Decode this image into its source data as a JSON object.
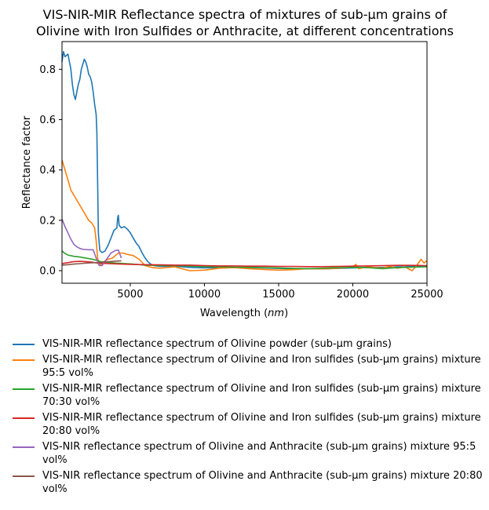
{
  "chart_data": {
    "type": "line",
    "title_lines": [
      "VIS-NIR-MIR Reflectance spectra of mixtures of sub-µm grains of",
      "Olivine with Iron Sulfides or Anthracite, at different concentrations"
    ],
    "xlabel_prefix": "Wavelength (",
    "xlabel_unit": "nm",
    "xlabel_suffix": ")",
    "ylabel": "Reflectance factor",
    "xlim": [
      400,
      25000
    ],
    "ylim": [
      -0.05,
      0.91
    ],
    "xticks": [
      5000,
      10000,
      15000,
      20000,
      25000
    ],
    "yticks": [
      0.0,
      0.2,
      0.4,
      0.6,
      0.8
    ],
    "legend_position": "below",
    "series": [
      {
        "name": "VIS-NIR-MIR reflectance spectrum of Olivine powder (sub-µm grains)",
        "color": "#1f77b4",
        "points": [
          [
            400,
            0.83
          ],
          [
            500,
            0.87
          ],
          [
            600,
            0.85
          ],
          [
            800,
            0.86
          ],
          [
            1000,
            0.8
          ],
          [
            1100,
            0.74
          ],
          [
            1200,
            0.7
          ],
          [
            1300,
            0.68
          ],
          [
            1400,
            0.71
          ],
          [
            1500,
            0.74
          ],
          [
            1600,
            0.76
          ],
          [
            1700,
            0.8
          ],
          [
            1800,
            0.82
          ],
          [
            1900,
            0.84
          ],
          [
            2000,
            0.83
          ],
          [
            2100,
            0.81
          ],
          [
            2200,
            0.78
          ],
          [
            2300,
            0.77
          ],
          [
            2400,
            0.75
          ],
          [
            2500,
            0.71
          ],
          [
            2600,
            0.66
          ],
          [
            2700,
            0.62
          ],
          [
            2750,
            0.55
          ],
          [
            2800,
            0.35
          ],
          [
            2850,
            0.15
          ],
          [
            2950,
            0.08
          ],
          [
            3100,
            0.072
          ],
          [
            3300,
            0.078
          ],
          [
            3500,
            0.1
          ],
          [
            3700,
            0.13
          ],
          [
            3900,
            0.16
          ],
          [
            4100,
            0.17
          ],
          [
            4150,
            0.21
          ],
          [
            4200,
            0.22
          ],
          [
            4250,
            0.18
          ],
          [
            4400,
            0.17
          ],
          [
            4600,
            0.175
          ],
          [
            4800,
            0.165
          ],
          [
            5000,
            0.15
          ],
          [
            5200,
            0.13
          ],
          [
            5400,
            0.11
          ],
          [
            5600,
            0.095
          ],
          [
            5800,
            0.07
          ],
          [
            6000,
            0.05
          ],
          [
            6200,
            0.035
          ],
          [
            6400,
            0.025
          ],
          [
            6600,
            0.02
          ],
          [
            7000,
            0.017
          ],
          [
            8000,
            0.018
          ],
          [
            9000,
            0.013
          ],
          [
            10000,
            0.011
          ],
          [
            11000,
            0.012
          ],
          [
            12000,
            0.013
          ],
          [
            13000,
            0.012
          ],
          [
            14000,
            0.011
          ],
          [
            15000,
            0.009
          ],
          [
            16000,
            0.008
          ],
          [
            17000,
            0.008
          ],
          [
            18000,
            0.007
          ],
          [
            19000,
            0.009
          ],
          [
            20000,
            0.011
          ],
          [
            21000,
            0.012
          ],
          [
            22000,
            0.013
          ],
          [
            23000,
            0.015
          ],
          [
            24000,
            0.016
          ],
          [
            25000,
            0.017
          ]
        ]
      },
      {
        "name": "VIS-NIR-MIR reflectance spectrum of Olivine and Iron sulfides (sub-µm grains) mixture 95:5 vol%",
        "color": "#ff7f0e",
        "points": [
          [
            400,
            0.44
          ],
          [
            600,
            0.4
          ],
          [
            800,
            0.36
          ],
          [
            1000,
            0.32
          ],
          [
            1200,
            0.3
          ],
          [
            1400,
            0.28
          ],
          [
            1600,
            0.26
          ],
          [
            1800,
            0.24
          ],
          [
            2000,
            0.22
          ],
          [
            2200,
            0.2
          ],
          [
            2400,
            0.19
          ],
          [
            2600,
            0.17
          ],
          [
            2700,
            0.12
          ],
          [
            2800,
            0.05
          ],
          [
            2900,
            0.025
          ],
          [
            3000,
            0.022
          ],
          [
            3200,
            0.035
          ],
          [
            3500,
            0.045
          ],
          [
            3800,
            0.05
          ],
          [
            4000,
            0.06
          ],
          [
            4200,
            0.07
          ],
          [
            4500,
            0.07
          ],
          [
            4800,
            0.065
          ],
          [
            5200,
            0.06
          ],
          [
            5600,
            0.045
          ],
          [
            6000,
            0.02
          ],
          [
            6500,
            0.012
          ],
          [
            7000,
            0.01
          ],
          [
            8000,
            0.015
          ],
          [
            9000,
            0.0
          ],
          [
            10000,
            0.002
          ],
          [
            11000,
            0.01
          ],
          [
            12000,
            0.012
          ],
          [
            13000,
            0.008
          ],
          [
            14000,
            0.005
          ],
          [
            15000,
            0.002
          ],
          [
            16000,
            0.004
          ],
          [
            17000,
            0.008
          ],
          [
            18000,
            0.007
          ],
          [
            19000,
            0.01
          ],
          [
            20000,
            0.014
          ],
          [
            20200,
            0.025
          ],
          [
            20400,
            0.008
          ],
          [
            21000,
            0.015
          ],
          [
            22000,
            0.01
          ],
          [
            22500,
            0.018
          ],
          [
            23000,
            0.01
          ],
          [
            23500,
            0.015
          ],
          [
            24000,
            0.0
          ],
          [
            24300,
            0.02
          ],
          [
            24600,
            0.045
          ],
          [
            24800,
            0.03
          ],
          [
            25000,
            0.04
          ]
        ]
      },
      {
        "name": "VIS-NIR-MIR reflectance spectrum of Olivine and Iron sulfides (sub-µm grains) mixture 70:30 vol%",
        "color": "#2ca02c",
        "points": [
          [
            400,
            0.078
          ],
          [
            600,
            0.068
          ],
          [
            800,
            0.062
          ],
          [
            1200,
            0.057
          ],
          [
            1600,
            0.054
          ],
          [
            2000,
            0.05
          ],
          [
            2400,
            0.046
          ],
          [
            2800,
            0.04
          ],
          [
            3000,
            0.036
          ],
          [
            3500,
            0.033
          ],
          [
            4000,
            0.03
          ],
          [
            5000,
            0.027
          ],
          [
            6000,
            0.022
          ],
          [
            7000,
            0.02
          ],
          [
            8000,
            0.02
          ],
          [
            9000,
            0.018
          ],
          [
            10000,
            0.016
          ],
          [
            11000,
            0.015
          ],
          [
            12000,
            0.014
          ],
          [
            13000,
            0.013
          ],
          [
            14000,
            0.012
          ],
          [
            15000,
            0.011
          ],
          [
            16000,
            0.009
          ],
          [
            17000,
            0.008
          ],
          [
            18000,
            0.01
          ],
          [
            19000,
            0.012
          ],
          [
            20000,
            0.013
          ],
          [
            21000,
            0.012
          ],
          [
            22000,
            0.008
          ],
          [
            23000,
            0.012
          ],
          [
            24000,
            0.014
          ],
          [
            25000,
            0.015
          ]
        ]
      },
      {
        "name": "VIS-NIR-MIR reflectance spectrum of Olivine and Iron sulfides (sub-µm grains) mixture 20:80 vol%",
        "color": "#d62728",
        "points": [
          [
            400,
            0.028
          ],
          [
            800,
            0.032
          ],
          [
            1200,
            0.036
          ],
          [
            1600,
            0.037
          ],
          [
            2000,
            0.036
          ],
          [
            2400,
            0.034
          ],
          [
            2800,
            0.03
          ],
          [
            3200,
            0.029
          ],
          [
            3600,
            0.028
          ],
          [
            4000,
            0.027
          ],
          [
            5000,
            0.025
          ],
          [
            6000,
            0.024
          ],
          [
            7000,
            0.023
          ],
          [
            8000,
            0.022
          ],
          [
            9000,
            0.022
          ],
          [
            10000,
            0.02
          ],
          [
            11000,
            0.019
          ],
          [
            12000,
            0.019
          ],
          [
            13000,
            0.018
          ],
          [
            14000,
            0.018
          ],
          [
            15000,
            0.017
          ],
          [
            16000,
            0.017
          ],
          [
            17000,
            0.016
          ],
          [
            18000,
            0.016
          ],
          [
            19000,
            0.017
          ],
          [
            20000,
            0.018
          ],
          [
            21000,
            0.019
          ],
          [
            22000,
            0.02
          ],
          [
            23000,
            0.021
          ],
          [
            24000,
            0.021
          ],
          [
            25000,
            0.02
          ]
        ]
      },
      {
        "name": "VIS-NIR reflectance spectrum of Olivine and Anthracite (sub-µm grains) mixture 95:5 vol%",
        "color": "#9467bd",
        "points": [
          [
            400,
            0.205
          ],
          [
            600,
            0.175
          ],
          [
            800,
            0.15
          ],
          [
            1000,
            0.125
          ],
          [
            1200,
            0.105
          ],
          [
            1400,
            0.095
          ],
          [
            1600,
            0.088
          ],
          [
            1800,
            0.085
          ],
          [
            2000,
            0.084
          ],
          [
            2200,
            0.083
          ],
          [
            2500,
            0.083
          ],
          [
            2700,
            0.05
          ],
          [
            2900,
            0.02
          ],
          [
            3100,
            0.02
          ],
          [
            3400,
            0.045
          ],
          [
            3700,
            0.07
          ],
          [
            4000,
            0.08
          ],
          [
            4200,
            0.082
          ],
          [
            4400,
            0.05
          ]
        ]
      },
      {
        "name": "VIS-NIR reflectance spectrum of Olivine and Anthracite (sub-µm grains) mixture 20:80 vol%",
        "color": "#8c564b",
        "points": [
          [
            400,
            0.022
          ],
          [
            800,
            0.024
          ],
          [
            1200,
            0.026
          ],
          [
            1600,
            0.028
          ],
          [
            2000,
            0.03
          ],
          [
            2400,
            0.031
          ],
          [
            2800,
            0.032
          ],
          [
            3200,
            0.034
          ],
          [
            3600,
            0.036
          ],
          [
            4000,
            0.038
          ],
          [
            4400,
            0.039
          ]
        ]
      }
    ]
  }
}
